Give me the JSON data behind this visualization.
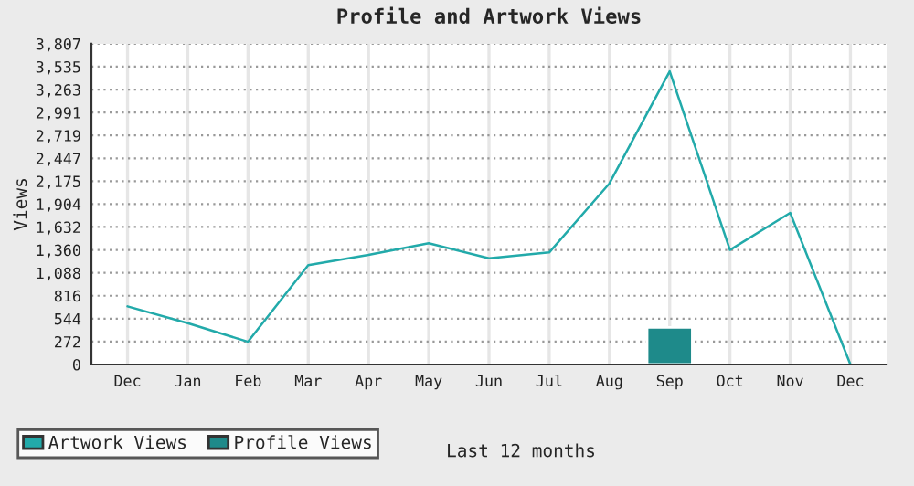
{
  "chart_data": {
    "type": "line",
    "title": "Profile and Artwork Views",
    "xlabel": "Last 12 months",
    "ylabel": "Views",
    "categories": [
      "Dec",
      "Jan",
      "Feb",
      "Mar",
      "Apr",
      "May",
      "Jun",
      "Jul",
      "Aug",
      "Sep",
      "Oct",
      "Nov",
      "Dec"
    ],
    "series": [
      {
        "name": "Artwork Views",
        "color": "#22aaaa",
        "values": [
          690,
          490,
          270,
          1180,
          1300,
          1440,
          1260,
          1330,
          2150,
          3480,
          1360,
          1800,
          0
        ]
      },
      {
        "name": "Profile Views",
        "type": "bar",
        "color": "#1e8a8a",
        "values": [
          null,
          null,
          null,
          null,
          null,
          null,
          null,
          null,
          null,
          440,
          null,
          null,
          null
        ]
      }
    ],
    "ylim": [
      0,
      3807
    ],
    "yticks": [
      0,
      272,
      544,
      816,
      {
        "value": 1088,
        "label": "1,088"
      },
      {
        "value": 1360,
        "label": "1,360"
      },
      {
        "value": 1632,
        "label": "1,632"
      },
      {
        "value": 1904,
        "label": "1,904"
      },
      {
        "value": 2175,
        "label": "2,175"
      },
      {
        "value": 2447,
        "label": "2,447"
      },
      {
        "value": 2719,
        "label": "2,719"
      },
      {
        "value": 2991,
        "label": "2,991"
      },
      {
        "value": 3263,
        "label": "3,263"
      },
      {
        "value": 3535,
        "label": "3,535"
      },
      {
        "value": 3807,
        "label": "3,807"
      }
    ],
    "grid": true,
    "legend": "bottom left"
  }
}
